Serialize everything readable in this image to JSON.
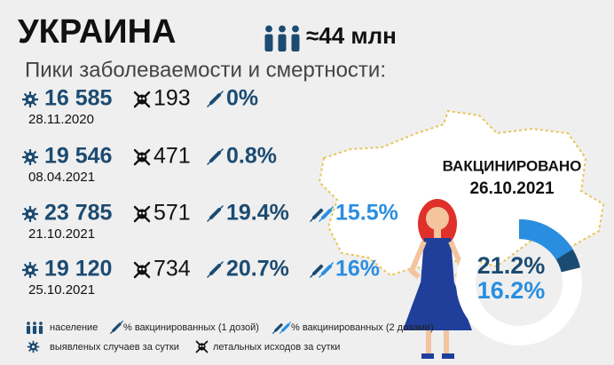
{
  "header": {
    "title": "УКРАИНА",
    "population": "≈44 млн",
    "subtitle": "Пики заболеваемости и смертности:"
  },
  "rows": [
    {
      "cases": "16 585",
      "date": "28.11.2020",
      "deaths": "193",
      "dose1": "0%"
    },
    {
      "cases": "19 546",
      "date": "08.04.2021",
      "deaths": "471",
      "dose1": "0.8%"
    },
    {
      "cases": "23 785",
      "date": "21.10.2021",
      "deaths": "571",
      "dose1": "19.4%",
      "dose2": "15.5%"
    },
    {
      "cases": "19 120",
      "date": "25.10.2021",
      "deaths": "734",
      "dose1": "20.7%",
      "dose2": "16%"
    }
  ],
  "vaccination": {
    "title": "ВАКЦИНИРОВАНО",
    "date": "26.10.2021",
    "values": [
      21.2,
      16.2
    ],
    "value_labels": [
      "21.2%",
      "16.2%"
    ],
    "colors": [
      "#1c4b72",
      "#2a8ee0"
    ]
  },
  "legend": {
    "population": "население",
    "dose1": "% вакцинированных (1 дозой)",
    "dose2": "% вакцинированных (2 дозами)",
    "cases": "выявленых случаев за сутки",
    "deaths": "летальных исходов за сутки"
  }
}
